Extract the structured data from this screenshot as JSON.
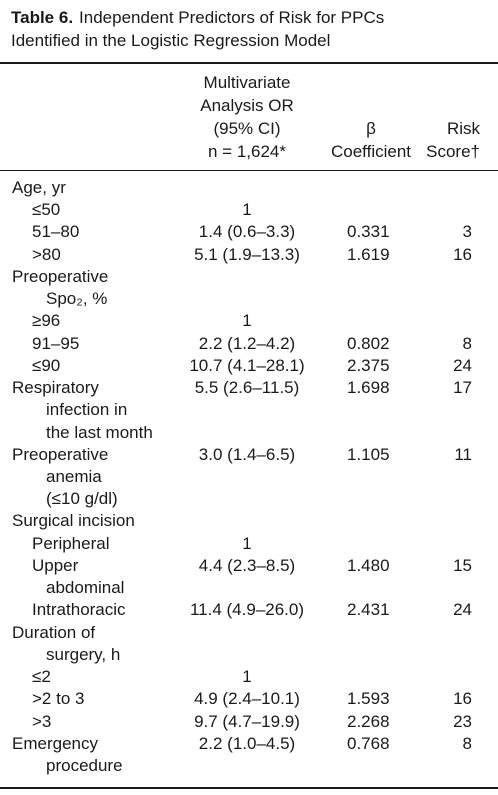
{
  "table": {
    "label": "Table 6.",
    "title_lines": [
      "Independent Predictors of Risk for PPCs",
      "Identified in the Logistic Regression Model"
    ],
    "headers": [
      [
        "Multivariate",
        "Analysis OR",
        "(95% CI)",
        "n = 1,624*"
      ],
      [
        "β",
        "Coefficient"
      ],
      [
        "Risk",
        "Score†"
      ]
    ],
    "sections": [
      {
        "heading": [
          "Age, yr"
        ],
        "items": [
          {
            "label": [
              "≤50"
            ],
            "or": "1"
          },
          {
            "label": [
              "51–80"
            ],
            "or": "1.4 (0.6–3.3)",
            "beta": "0.331",
            "risk": "3"
          },
          {
            "label": [
              ">80"
            ],
            "or": "5.1 (1.9–13.3)",
            "beta": "1.619",
            "risk": "16"
          }
        ]
      },
      {
        "heading": [
          "Preoperative",
          "Spo₂, %"
        ],
        "items": [
          {
            "label": [
              "≥96"
            ],
            "or": "1"
          },
          {
            "label": [
              "91–95"
            ],
            "or": "2.2 (1.2–4.2)",
            "beta": "0.802",
            "risk": "8"
          },
          {
            "label": [
              "≤90"
            ],
            "or": "10.7 (4.1–28.1)",
            "beta": "2.375",
            "risk": "24"
          }
        ]
      },
      {
        "heading": [
          "Respiratory",
          "infection in",
          "the last month"
        ],
        "or": "5.5 (2.6–11.5)",
        "beta": "1.698",
        "risk": "17"
      },
      {
        "heading": [
          "Preoperative",
          "anemia",
          "(≤10 g/dl)"
        ],
        "or": "3.0 (1.4–6.5)",
        "beta": "1.105",
        "risk": "11"
      },
      {
        "heading": [
          "Surgical incision"
        ],
        "items": [
          {
            "label": [
              "Peripheral"
            ],
            "or": "1"
          },
          {
            "label": [
              "Upper",
              "abdominal"
            ],
            "or": "4.4 (2.3–8.5)",
            "beta": "1.480",
            "risk": "15"
          },
          {
            "label": [
              "Intrathoracic"
            ],
            "or": "11.4 (4.9–26.0)",
            "beta": "2.431",
            "risk": "24"
          }
        ]
      },
      {
        "heading": [
          "Duration of",
          "surgery, h"
        ],
        "items": [
          {
            "label": [
              "≤2"
            ],
            "or": "1"
          },
          {
            "label": [
              ">2 to 3"
            ],
            "or": "4.9 (2.4–10.1)",
            "beta": "1.593",
            "risk": "16"
          },
          {
            "label": [
              ">3"
            ],
            "or": "9.7 (4.7–19.9)",
            "beta": "2.268",
            "risk": "23"
          }
        ]
      },
      {
        "heading": [
          "Emergency",
          "procedure"
        ],
        "or": "2.2 (1.0–4.5)",
        "beta": "0.768",
        "risk": "8"
      }
    ]
  }
}
